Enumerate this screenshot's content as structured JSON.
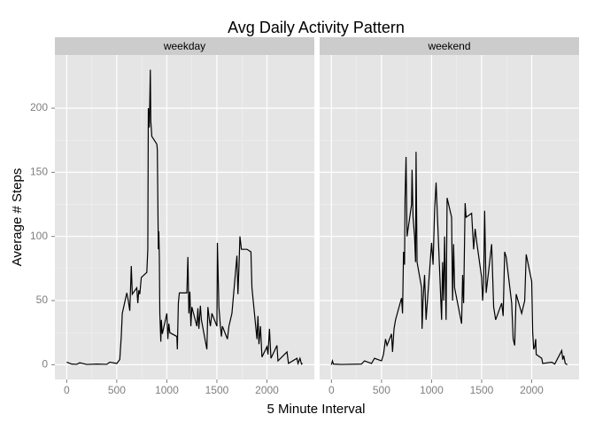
{
  "title": "Avg Daily Activity Pattern",
  "x_label": "5 Minute Interval",
  "y_label": "Average # Steps",
  "chart_data": [
    {
      "type": "line",
      "title": "weekday",
      "color": "#000000",
      "grid": true,
      "xlim": [
        -118,
        2473
      ],
      "ylim": [
        -11.5,
        241.5
      ],
      "xticks": [
        0,
        500,
        1000,
        1500,
        2000
      ],
      "yticks": [
        0,
        50,
        100,
        150,
        200
      ],
      "x": [
        0,
        50,
        100,
        130,
        200,
        300,
        400,
        430,
        500,
        520,
        530,
        545,
        555,
        600,
        615,
        630,
        640,
        645,
        655,
        700,
        710,
        720,
        730,
        745,
        800,
        810,
        815,
        825,
        835,
        840,
        850,
        900,
        905,
        915,
        920,
        925,
        930,
        940,
        945,
        955,
        1000,
        1010,
        1020,
        1030,
        1100,
        1105,
        1115,
        1125,
        1200,
        1210,
        1220,
        1230,
        1240,
        1250,
        1300,
        1310,
        1320,
        1335,
        1345,
        1400,
        1410,
        1425,
        1435,
        1450,
        1500,
        1505,
        1520,
        1535,
        1545,
        1555,
        1605,
        1620,
        1650,
        1700,
        1710,
        1720,
        1730,
        1745,
        1800,
        1840,
        1850,
        1900,
        1910,
        1920,
        1935,
        1950,
        2000,
        2010,
        2025,
        2040,
        2100,
        2110,
        2200,
        2215,
        2300,
        2310,
        2330,
        2345,
        2355
      ],
      "values": [
        2,
        0.5,
        0.3,
        1.5,
        0.2,
        0.5,
        0.3,
        2,
        1,
        3,
        4,
        22,
        40,
        56,
        50,
        42,
        65,
        77,
        55,
        60,
        48,
        58,
        55,
        68,
        72,
        90,
        200,
        185,
        230,
        190,
        178,
        172,
        168,
        90,
        104,
        85,
        40,
        18,
        35,
        24,
        40,
        20,
        32,
        25,
        22,
        12,
        48,
        56,
        56,
        84,
        40,
        57,
        30,
        45,
        30,
        44,
        28,
        46,
        35,
        12,
        45,
        35,
        30,
        40,
        30,
        95,
        45,
        30,
        22,
        30,
        20,
        30,
        40,
        85,
        55,
        75,
        100,
        90,
        90,
        88,
        60,
        20,
        38,
        16,
        30,
        6,
        14,
        8,
        28,
        5,
        15,
        3,
        10,
        1,
        5,
        1,
        5,
        0.5,
        1
      ]
    },
    {
      "type": "line",
      "title": "weekend",
      "color": "#000000",
      "grid": true,
      "xlim": [
        -118,
        2473
      ],
      "ylim": [
        -11.5,
        241.5
      ],
      "xticks": [
        0,
        500,
        1000,
        1500,
        2000
      ],
      "yticks": [
        0,
        50,
        100,
        150,
        200
      ],
      "x": [
        0,
        10,
        20,
        100,
        300,
        330,
        400,
        430,
        500,
        520,
        540,
        555,
        600,
        610,
        625,
        640,
        700,
        710,
        720,
        730,
        735,
        745,
        755,
        800,
        805,
        815,
        830,
        840,
        845,
        855,
        900,
        905,
        915,
        930,
        945,
        1000,
        1015,
        1030,
        1045,
        1100,
        1110,
        1120,
        1130,
        1145,
        1155,
        1200,
        1210,
        1220,
        1230,
        1300,
        1310,
        1320,
        1335,
        1345,
        1400,
        1420,
        1435,
        1450,
        1500,
        1510,
        1520,
        1530,
        1545,
        1600,
        1620,
        1640,
        1700,
        1715,
        1730,
        1745,
        1800,
        1815,
        1830,
        1845,
        1900,
        1930,
        1945,
        2000,
        2010,
        2020,
        2030,
        2040,
        2045,
        2100,
        2110,
        2200,
        2230,
        2300,
        2310,
        2320,
        2335,
        2345,
        2355
      ],
      "values": [
        0,
        3,
        0.5,
        0.2,
        0.5,
        3,
        1,
        5,
        3,
        8,
        20,
        15,
        24,
        10,
        28,
        35,
        52,
        40,
        88,
        78,
        130,
        162,
        100,
        125,
        152,
        115,
        100,
        80,
        166,
        80,
        60,
        28,
        50,
        70,
        35,
        95,
        78,
        120,
        142,
        35,
        80,
        50,
        100,
        35,
        130,
        115,
        50,
        94,
        60,
        32,
        70,
        48,
        126,
        115,
        118,
        90,
        106,
        96,
        68,
        50,
        64,
        120,
        56,
        94,
        45,
        35,
        48,
        38,
        88,
        84,
        48,
        20,
        15,
        55,
        40,
        50,
        86,
        65,
        25,
        12,
        14,
        20,
        8,
        5,
        1,
        2,
        0.5,
        11,
        4,
        7,
        1,
        0.5,
        0
      ]
    }
  ]
}
